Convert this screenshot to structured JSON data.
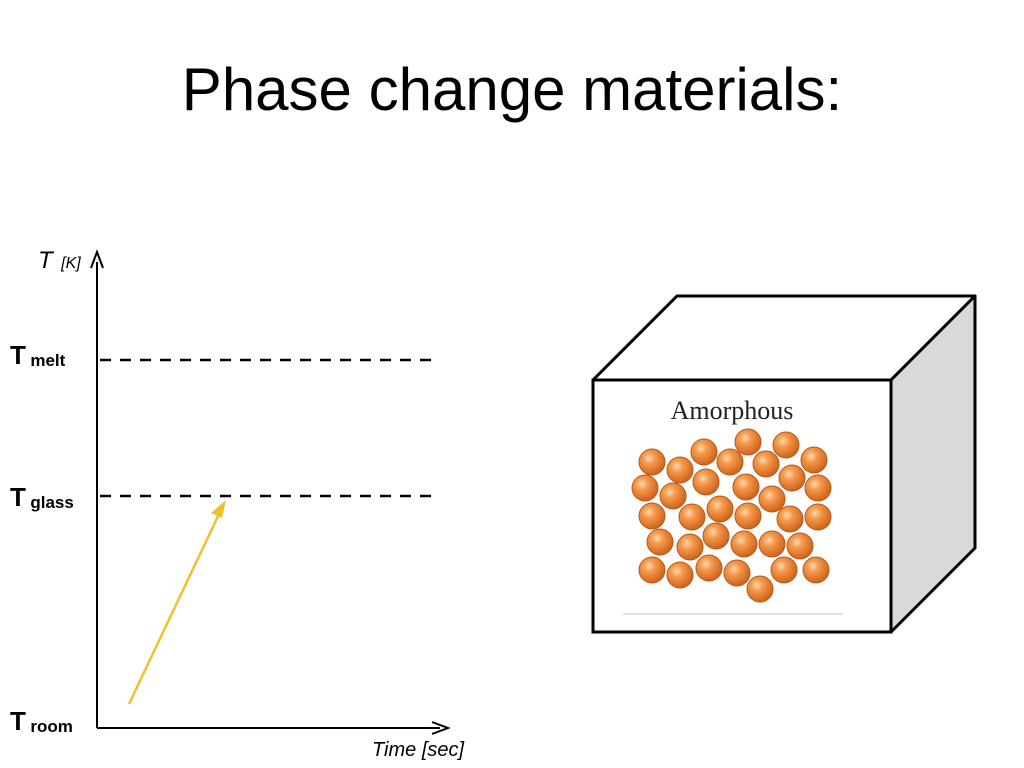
{
  "slide": {
    "title": "Phase change materials:"
  },
  "graph": {
    "y_axis": {
      "symbol": "T",
      "unit": "[K]"
    },
    "x_axis": {
      "label": "Time [sec]"
    },
    "levels": [
      {
        "main": "T",
        "sub": "melt"
      },
      {
        "main": "T",
        "sub": "glass"
      },
      {
        "main": "T",
        "sub": "room"
      }
    ],
    "arrow_color": "#f0c030"
  },
  "cube": {
    "label": "Amorphous",
    "sphere_color": "#f08a3a",
    "side_color": "#d9d9d9"
  }
}
